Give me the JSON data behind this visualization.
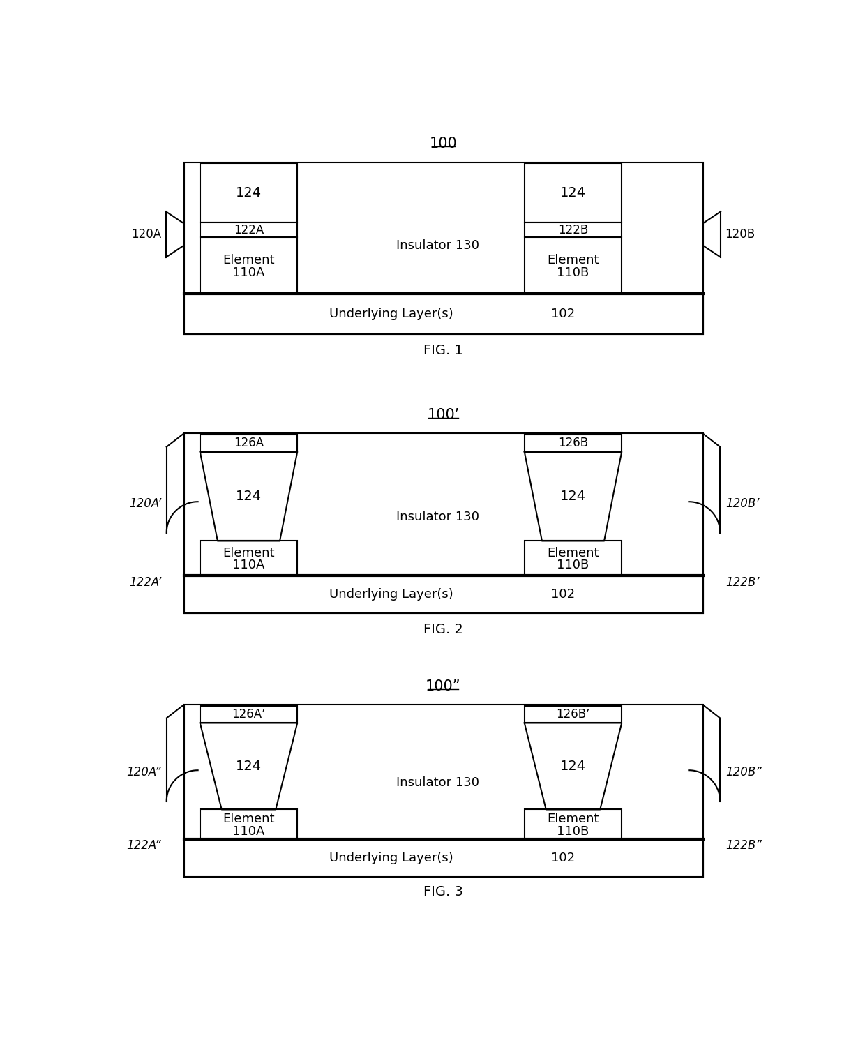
{
  "bg_color": "#ffffff",
  "line_color": "#000000",
  "fig_width": 12.4,
  "fig_height": 15.21,
  "title1": "100",
  "title2": "100’",
  "title3": "100”",
  "figlabel1": "FIG. 1",
  "figlabel2": "FIG. 2",
  "figlabel3": "FIG. 3",
  "insulator_label": "Insulator 130",
  "underlying_label": "Underlying Layer(s)",
  "label_102": "102",
  "label_124": "124",
  "label_122A": "122A",
  "label_122B": "122B",
  "label_126A": "126A",
  "label_126B": "126B",
  "label_126Ap": "126A’",
  "label_126Bp": "126B’",
  "label_110A": "Element\n110A",
  "label_110B": "Element\n110B",
  "label_120A": "120A",
  "label_120B": "120B",
  "label_120Ap": "120A’",
  "label_120Bp": "120B’",
  "label_122Ap": "122A’",
  "label_122Bp": "122B’",
  "label_120App": "120A”",
  "label_120Bpp": "120B”",
  "label_122App": "122A”",
  "label_122Bpp": "122B”"
}
